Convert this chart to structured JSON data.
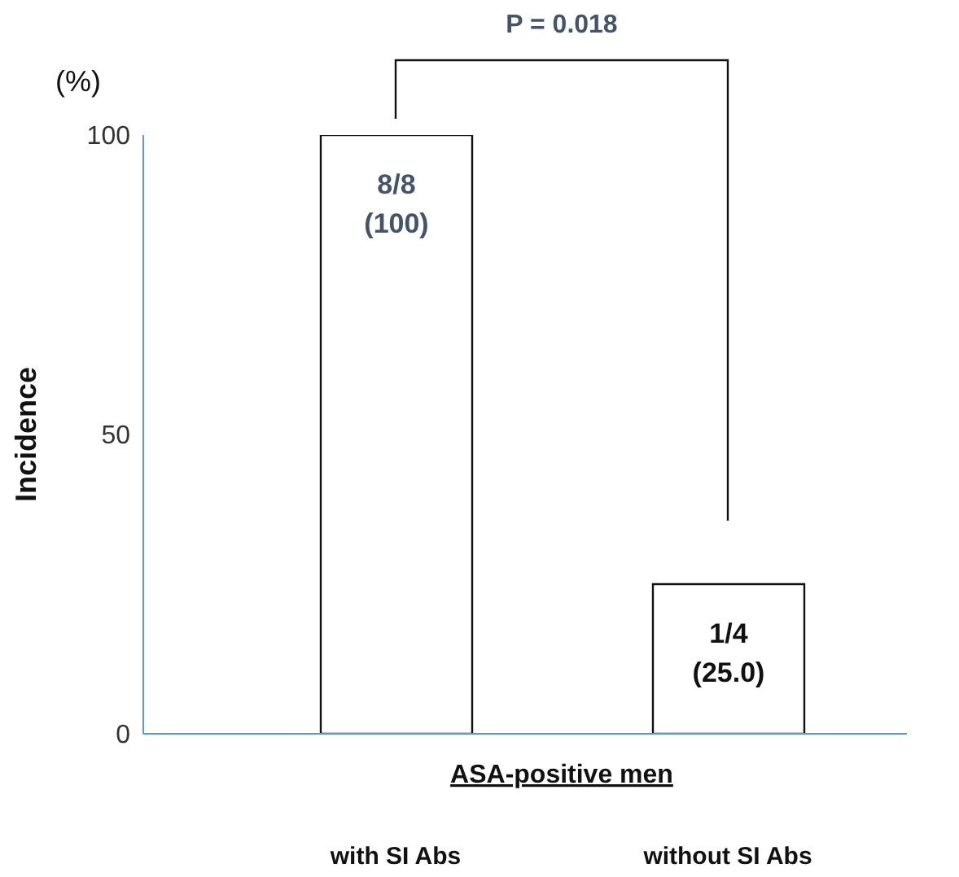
{
  "chart_data": {
    "type": "bar",
    "xlabel": "ASA-positive men",
    "ylabel": "Incidence",
    "categories": [
      "with SI Abs",
      "without SI Abs"
    ],
    "values": [
      100,
      25
    ],
    "value_labels": [
      "8/8\n(100)",
      "1/4\n(25.0)"
    ],
    "color": "#ffffff",
    "ylim": [
      0,
      100
    ],
    "yticks": [
      0,
      50,
      100
    ],
    "annotations": [
      "(%)",
      "P = 0.018"
    ]
  }
}
